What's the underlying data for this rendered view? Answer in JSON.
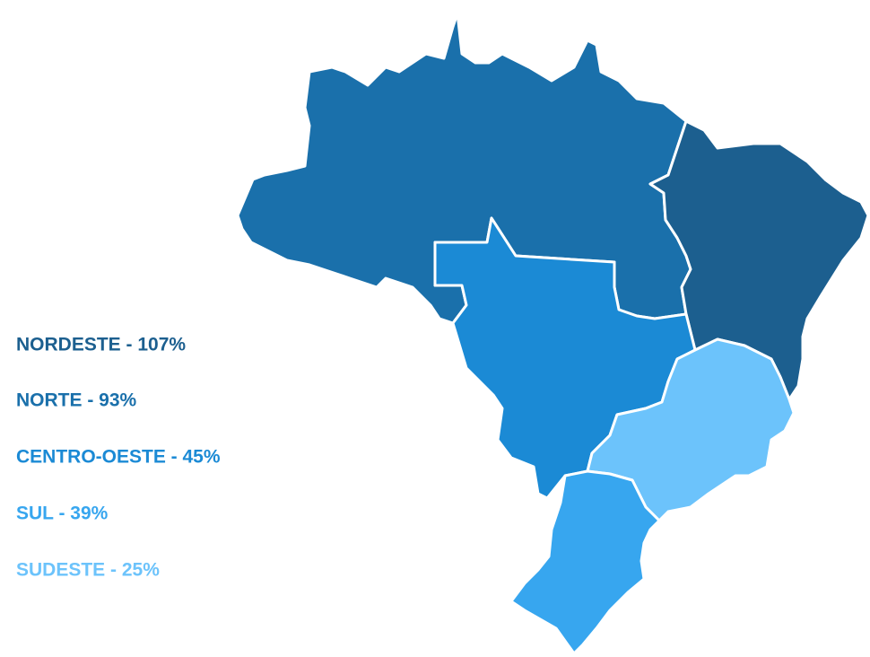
{
  "map": {
    "regions": [
      {
        "label": "NORDESTE - 107%",
        "color": "#1c5f8f"
      },
      {
        "label": "NORTE - 93%",
        "color": "#1a70ab"
      },
      {
        "label": "CENTRO-OESTE - 45%",
        "color": "#1b8ad5"
      },
      {
        "label": "SUL - 39%",
        "color": "#37a6ef"
      },
      {
        "label": "SUDESTE - 25%",
        "color": "#6cc3fb"
      }
    ]
  }
}
